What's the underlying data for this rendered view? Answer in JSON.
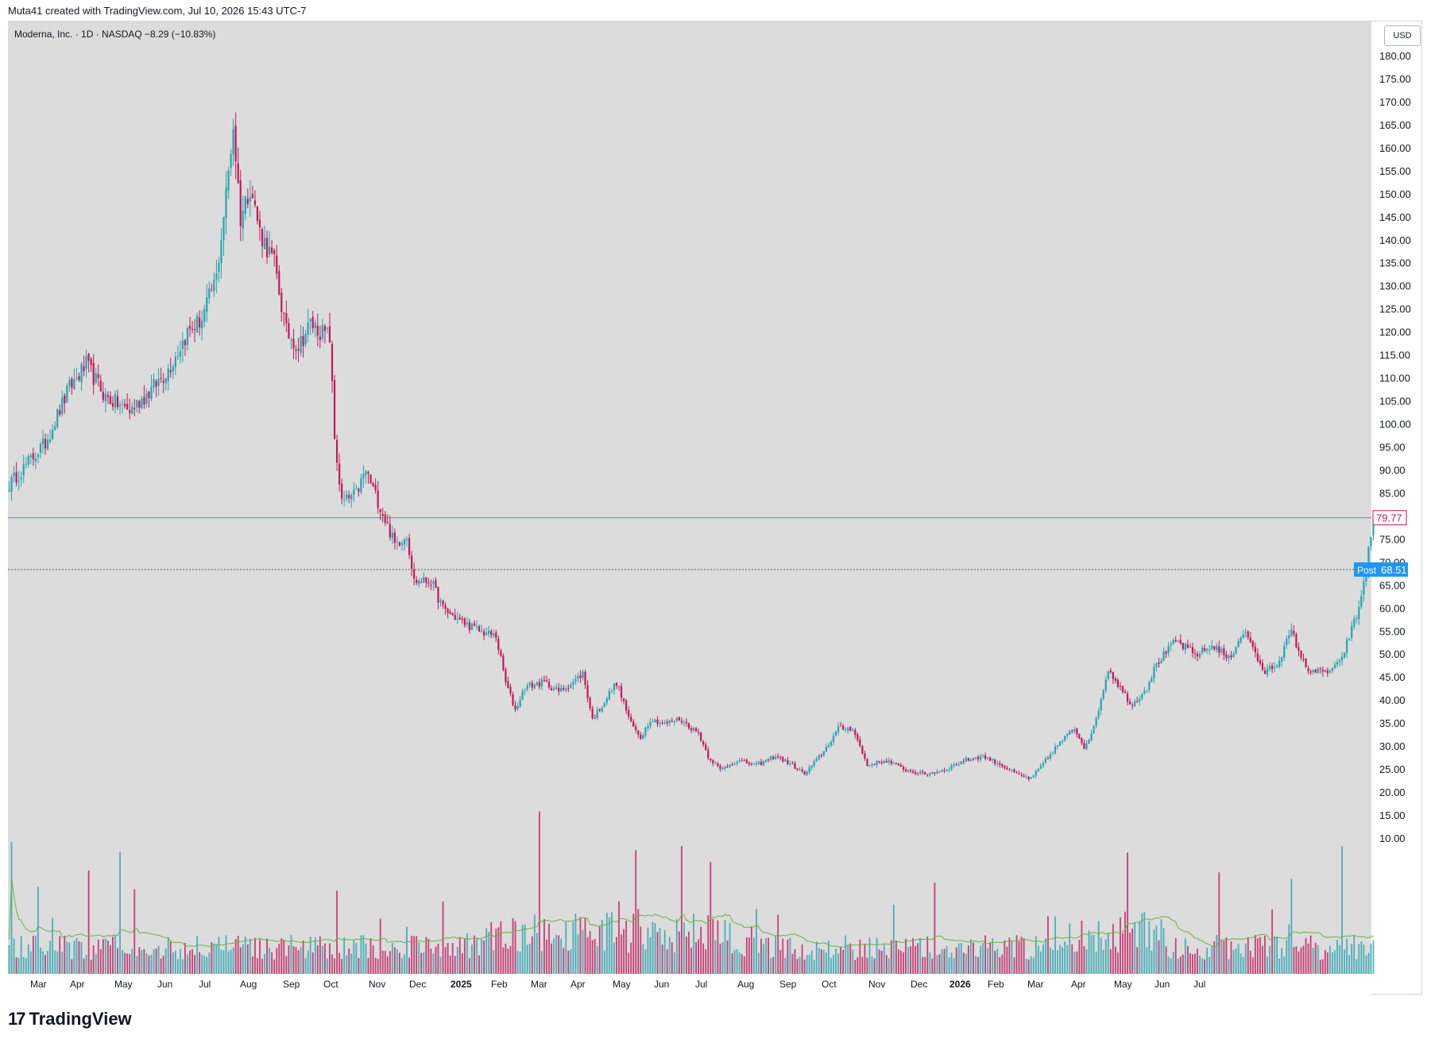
{
  "header": {
    "created_text": "Muta41 created with TradingView.com, Jul 10, 2026 15:43 UTC-7"
  },
  "legend": {
    "text": "Moderna, Inc. · 1D · NASDAQ  −8.29 (−10.83%)"
  },
  "currency": "USD",
  "footer": {
    "logo_mark": "17",
    "logo_text": "TradingView"
  },
  "colors": {
    "background": "#dcdcdc",
    "up": "#26a3b0",
    "down": "#c2185b",
    "ma": "#6ab04c",
    "last_price": "#26a3b0",
    "post": "#2196f3",
    "last_label": "#c2185b"
  },
  "chart_data": {
    "type": "candlestick",
    "title": "Moderna, Inc. · 1D · NASDAQ",
    "change": "−8.29 (−10.83%)",
    "ylim": [
      5,
      190
    ],
    "y_ticks": [
      "180.00",
      "175.00",
      "170.00",
      "165.00",
      "160.00",
      "155.00",
      "150.00",
      "145.00",
      "140.00",
      "135.00",
      "130.00",
      "125.00",
      "120.00",
      "115.00",
      "110.00",
      "105.00",
      "100.00",
      "95.00",
      "90.00",
      "85.00",
      "80.00",
      "75.00",
      "70.00",
      "65.00",
      "60.00",
      "55.00",
      "50.00",
      "45.00",
      "40.00",
      "35.00",
      "30.00",
      "25.00",
      "20.00",
      "15.00",
      "10.00"
    ],
    "x_ticks": [
      {
        "label": "Mar",
        "bold": false
      },
      {
        "label": "Apr",
        "bold": false
      },
      {
        "label": "May",
        "bold": false
      },
      {
        "label": "Jun",
        "bold": false
      },
      {
        "label": "Jul",
        "bold": false
      },
      {
        "label": "Aug",
        "bold": false
      },
      {
        "label": "Sep",
        "bold": false
      },
      {
        "label": "Oct",
        "bold": false
      },
      {
        "label": "Nov",
        "bold": false
      },
      {
        "label": "Dec",
        "bold": false
      },
      {
        "label": "2025",
        "bold": true
      },
      {
        "label": "Feb",
        "bold": false
      },
      {
        "label": "Mar",
        "bold": false
      },
      {
        "label": "Apr",
        "bold": false
      },
      {
        "label": "May",
        "bold": false
      },
      {
        "label": "Jun",
        "bold": false
      },
      {
        "label": "Jul",
        "bold": false
      },
      {
        "label": "Aug",
        "bold": false
      },
      {
        "label": "Sep",
        "bold": false
      },
      {
        "label": "Oct",
        "bold": false
      },
      {
        "label": "Nov",
        "bold": false
      },
      {
        "label": "Dec",
        "bold": false
      },
      {
        "label": "2026",
        "bold": true
      },
      {
        "label": "Feb",
        "bold": false
      },
      {
        "label": "Mar",
        "bold": false
      },
      {
        "label": "Apr",
        "bold": false
      },
      {
        "label": "May",
        "bold": false
      },
      {
        "label": "Jun",
        "bold": false
      },
      {
        "label": "Jul",
        "bold": false
      }
    ],
    "anchors": [
      [
        0,
        87
      ],
      [
        5,
        90
      ],
      [
        15,
        96
      ],
      [
        25,
        108
      ],
      [
        32,
        113
      ],
      [
        40,
        106
      ],
      [
        50,
        103
      ],
      [
        58,
        107
      ],
      [
        66,
        112
      ],
      [
        74,
        120
      ],
      [
        80,
        123
      ],
      [
        86,
        132
      ],
      [
        90,
        150
      ],
      [
        93,
        165
      ],
      [
        96,
        145
      ],
      [
        100,
        152
      ],
      [
        104,
        142
      ],
      [
        110,
        135
      ],
      [
        115,
        120
      ],
      [
        120,
        117
      ],
      [
        125,
        122
      ],
      [
        130,
        120
      ],
      [
        133,
        119
      ],
      [
        135,
        97
      ],
      [
        138,
        83
      ],
      [
        144,
        85
      ],
      [
        148,
        90
      ],
      [
        154,
        82
      ],
      [
        160,
        74
      ],
      [
        165,
        76
      ],
      [
        168,
        66
      ],
      [
        175,
        66
      ],
      [
        180,
        60
      ],
      [
        188,
        57
      ],
      [
        196,
        55
      ],
      [
        202,
        54
      ],
      [
        206,
        44
      ],
      [
        210,
        38
      ],
      [
        214,
        43
      ],
      [
        222,
        44
      ],
      [
        228,
        42
      ],
      [
        234,
        44
      ],
      [
        238,
        46
      ],
      [
        242,
        36
      ],
      [
        246,
        39
      ],
      [
        252,
        44
      ],
      [
        258,
        35
      ],
      [
        262,
        32
      ],
      [
        266,
        36
      ],
      [
        272,
        35
      ],
      [
        278,
        36
      ],
      [
        286,
        33
      ],
      [
        290,
        28
      ],
      [
        295,
        25
      ],
      [
        302,
        27
      ],
      [
        310,
        26
      ],
      [
        318,
        28
      ],
      [
        325,
        26
      ],
      [
        330,
        24
      ],
      [
        338,
        29
      ],
      [
        344,
        34
      ],
      [
        350,
        34
      ],
      [
        356,
        26
      ],
      [
        364,
        27
      ],
      [
        372,
        25
      ],
      [
        380,
        24
      ],
      [
        388,
        25
      ],
      [
        396,
        27
      ],
      [
        404,
        28
      ],
      [
        412,
        26
      ],
      [
        418,
        24
      ],
      [
        424,
        23
      ],
      [
        430,
        27
      ],
      [
        436,
        31
      ],
      [
        442,
        34
      ],
      [
        446,
        30
      ],
      [
        450,
        34
      ],
      [
        456,
        47
      ],
      [
        462,
        42
      ],
      [
        466,
        39
      ],
      [
        472,
        43
      ],
      [
        476,
        48
      ],
      [
        484,
        53
      ],
      [
        492,
        50
      ],
      [
        500,
        52
      ],
      [
        506,
        49
      ],
      [
        512,
        55
      ],
      [
        516,
        52
      ],
      [
        520,
        46
      ],
      [
        526,
        48
      ],
      [
        532,
        55
      ],
      [
        538,
        47
      ],
      [
        546,
        46
      ],
      [
        552,
        48
      ],
      [
        556,
        54
      ],
      [
        560,
        60
      ],
      [
        563,
        69
      ],
      [
        566,
        79.77
      ]
    ],
    "last_price": 79.77,
    "last_price_label": "79.77",
    "post_price": 68.51,
    "post_label": "Post",
    "post_price_label": "68.51"
  }
}
